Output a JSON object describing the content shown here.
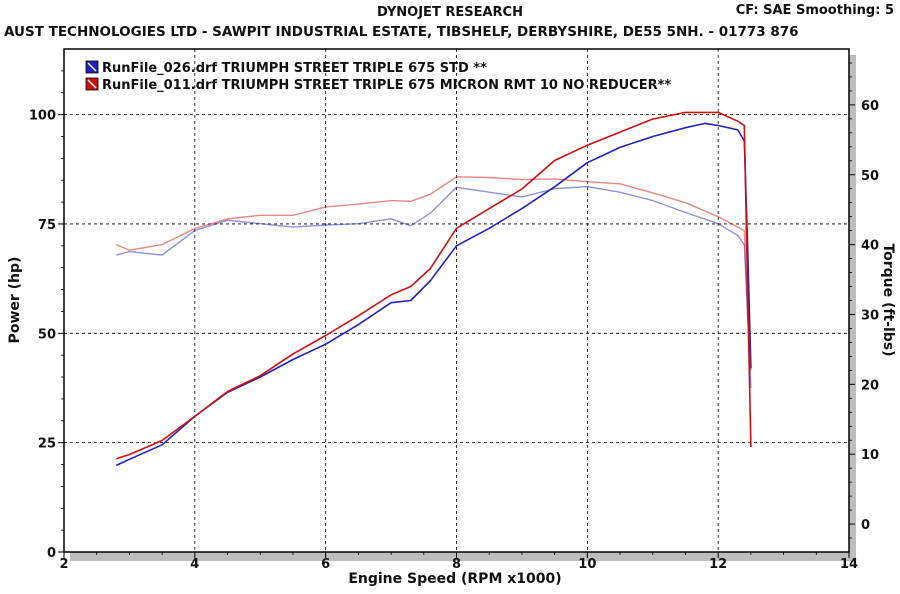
{
  "header": {
    "title": "DYNOJET RESEARCH",
    "subtitle": "AUST TECHNOLOGIES LTD - SAWPIT INDUSTRIAL ESTATE, TIBSHELF, DERBYSHIRE, DE55 5NH.  - 01773 876",
    "settings": "CF: SAE  Smoothing: 5"
  },
  "chart_data": {
    "type": "line",
    "xlabel": "Engine Speed (RPM x1000)",
    "ylabel": "Power (hp)",
    "y2label": "Torque (ft-lbs)",
    "xlim": [
      2,
      14
    ],
    "ylim": [
      0,
      115
    ],
    "y2lim": [
      -4,
      68
    ],
    "xticks": [
      2,
      4,
      6,
      8,
      10,
      12,
      14
    ],
    "yticks": [
      0,
      25,
      50,
      75,
      100
    ],
    "y2ticks": [
      0,
      10,
      20,
      30,
      40,
      50,
      60
    ],
    "grid": true,
    "legend": "top-left",
    "series": [
      {
        "name": "RunFile_026.drf TRIUMPH STREET  TRIPLE  675 STD **",
        "color": "#2222bb",
        "power": [
          [
            2.8,
            19.8
          ],
          [
            3.0,
            21.2
          ],
          [
            3.5,
            24.5
          ],
          [
            4.0,
            31.0
          ],
          [
            4.5,
            36.5
          ],
          [
            5.0,
            40.0
          ],
          [
            5.5,
            44.0
          ],
          [
            6.0,
            47.5
          ],
          [
            6.5,
            52.0
          ],
          [
            7.0,
            57.0
          ],
          [
            7.3,
            57.5
          ],
          [
            7.6,
            62.0
          ],
          [
            8.0,
            70.0
          ],
          [
            8.5,
            74.0
          ],
          [
            9.0,
            78.5
          ],
          [
            9.5,
            83.5
          ],
          [
            10.0,
            89.0
          ],
          [
            10.5,
            92.5
          ],
          [
            11.0,
            95.0
          ],
          [
            11.5,
            97.0
          ],
          [
            11.8,
            98.0
          ],
          [
            12.0,
            97.5
          ],
          [
            12.3,
            96.5
          ],
          [
            12.4,
            94.0
          ],
          [
            12.45,
            70.0
          ],
          [
            12.5,
            42.0
          ]
        ],
        "torque": [
          [
            2.8,
            38.5
          ],
          [
            3.0,
            39.0
          ],
          [
            3.5,
            38.5
          ],
          [
            4.0,
            42.0
          ],
          [
            4.5,
            43.5
          ],
          [
            5.0,
            43.0
          ],
          [
            5.5,
            42.5
          ],
          [
            6.0,
            42.8
          ],
          [
            6.5,
            43.0
          ],
          [
            7.0,
            43.7
          ],
          [
            7.3,
            42.7
          ],
          [
            7.6,
            44.5
          ],
          [
            8.0,
            48.2
          ],
          [
            8.5,
            47.5
          ],
          [
            9.0,
            46.8
          ],
          [
            9.5,
            48.0
          ],
          [
            10.0,
            48.3
          ],
          [
            10.5,
            47.5
          ],
          [
            11.0,
            46.3
          ],
          [
            11.5,
            44.6
          ],
          [
            12.0,
            43.0
          ],
          [
            12.3,
            41.3
          ],
          [
            12.4,
            40.0
          ],
          [
            12.45,
            30.0
          ],
          [
            12.5,
            19.5
          ]
        ]
      },
      {
        "name": "RunFile_011.drf TRIUMPH STREET  TRIPLE  675 MICRON  RMT 10  NO REDUCER**",
        "color": "#cc1111",
        "power": [
          [
            2.8,
            21.3
          ],
          [
            3.0,
            22.3
          ],
          [
            3.5,
            25.5
          ],
          [
            4.0,
            31.0
          ],
          [
            4.5,
            36.7
          ],
          [
            5.0,
            40.3
          ],
          [
            5.5,
            45.3
          ],
          [
            6.0,
            49.5
          ],
          [
            6.5,
            54.0
          ],
          [
            7.0,
            58.8
          ],
          [
            7.3,
            60.7
          ],
          [
            7.6,
            64.8
          ],
          [
            8.0,
            74.0
          ],
          [
            8.5,
            78.5
          ],
          [
            9.0,
            83.0
          ],
          [
            9.5,
            89.5
          ],
          [
            10.0,
            93.0
          ],
          [
            10.5,
            96.0
          ],
          [
            11.0,
            99.0
          ],
          [
            11.5,
            100.5
          ],
          [
            12.0,
            100.5
          ],
          [
            12.3,
            98.5
          ],
          [
            12.4,
            97.5
          ],
          [
            12.45,
            60.0
          ],
          [
            12.5,
            24.0
          ]
        ],
        "torque": [
          [
            2.8,
            40.0
          ],
          [
            3.0,
            39.2
          ],
          [
            3.5,
            40.0
          ],
          [
            4.0,
            42.3
          ],
          [
            4.5,
            43.7
          ],
          [
            5.0,
            44.2
          ],
          [
            5.5,
            44.2
          ],
          [
            6.0,
            45.4
          ],
          [
            6.5,
            45.8
          ],
          [
            7.0,
            46.3
          ],
          [
            7.3,
            46.2
          ],
          [
            7.6,
            47.2
          ],
          [
            8.0,
            49.7
          ],
          [
            8.5,
            49.6
          ],
          [
            9.0,
            49.3
          ],
          [
            9.5,
            49.4
          ],
          [
            10.0,
            49.0
          ],
          [
            10.5,
            48.7
          ],
          [
            11.0,
            47.4
          ],
          [
            11.5,
            46.0
          ],
          [
            12.0,
            44.0
          ],
          [
            12.3,
            42.5
          ],
          [
            12.4,
            42.0
          ],
          [
            12.45,
            30.0
          ],
          [
            12.5,
            22.0
          ]
        ]
      }
    ]
  }
}
